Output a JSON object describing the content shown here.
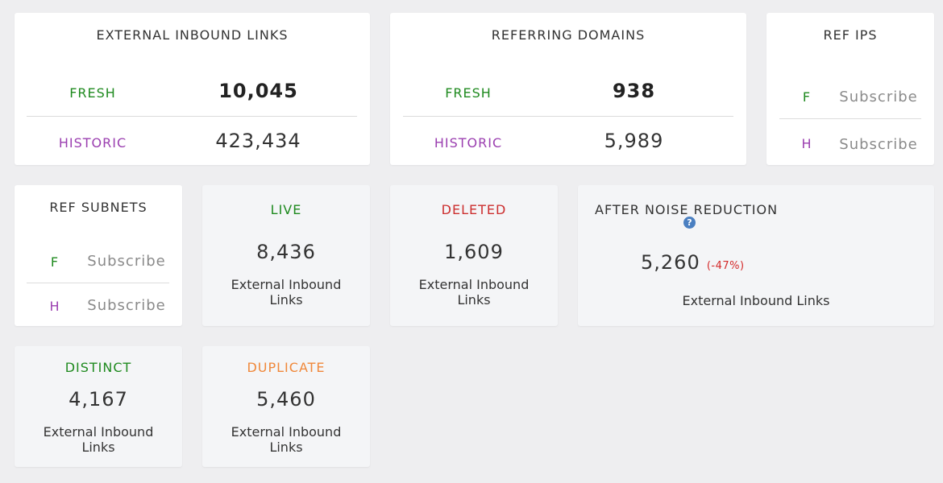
{
  "external_links": {
    "title": "EXTERNAL INBOUND LINKS",
    "fresh_label": "FRESH",
    "fresh_value": "10,045",
    "historic_label": "HISTORIC",
    "historic_value": "423,434"
  },
  "referring_domains": {
    "title": "REFERRING DOMAINS",
    "fresh_label": "FRESH",
    "fresh_value": "938",
    "historic_label": "HISTORIC",
    "historic_value": "5,989"
  },
  "ref_ips": {
    "title": "REF IPS",
    "f_label": "F",
    "f_value": "Subscribe",
    "h_label": "H",
    "h_value": "Subscribe"
  },
  "ref_subnets": {
    "title": "REF SUBNETS",
    "f_label": "F",
    "f_value": "Subscribe",
    "h_label": "H",
    "h_value": "Subscribe"
  },
  "live": {
    "title": "LIVE",
    "value": "8,436",
    "caption": "External Inbound Links"
  },
  "deleted": {
    "title": "DELETED",
    "value": "1,609",
    "caption": "External Inbound Links"
  },
  "noise": {
    "title": "AFTER NOISE REDUCTION",
    "help_icon": "?",
    "value": "5,260",
    "change": "(-47%)",
    "caption": "External Inbound Links"
  },
  "distinct": {
    "title": "DISTINCT",
    "value": "4,167",
    "caption": "External Inbound Links"
  },
  "duplicate": {
    "title": "DUPLICATE",
    "value": "5,460",
    "caption": "External Inbound Links"
  },
  "colors": {
    "fresh": "#1f8a1f",
    "historic": "#9b3fb0",
    "deleted": "#cc2f2f",
    "duplicate": "#f0883a",
    "help": "#4a7fc1"
  }
}
